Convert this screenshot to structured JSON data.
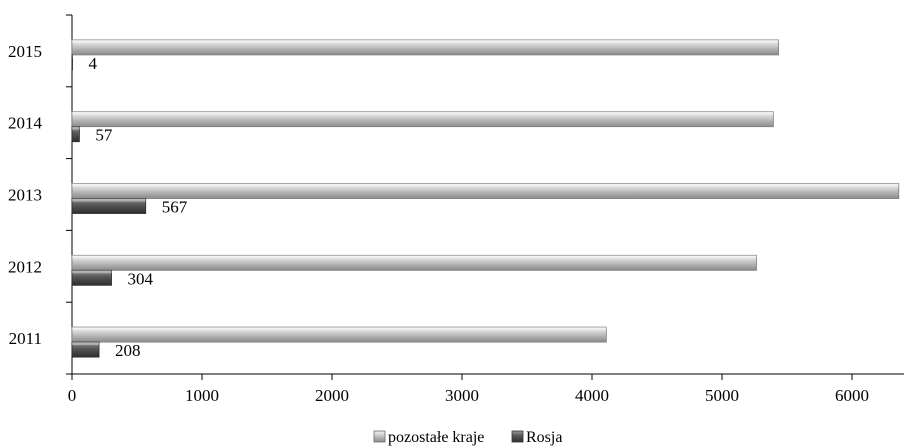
{
  "chart_data": {
    "type": "bar",
    "orientation": "horizontal",
    "categories": [
      "2011",
      "2012",
      "2013",
      "2014",
      "2015"
    ],
    "series": [
      {
        "name": "pozostałe kraje",
        "values": [
          4110,
          5265,
          6360,
          5395,
          5435
        ],
        "color": "#b5b5b5"
      },
      {
        "name": "Rosja",
        "values": [
          208,
          304,
          567,
          57,
          4
        ],
        "color": "#555555"
      }
    ],
    "data_labels": {
      "series": "Rosja",
      "values": [
        "208",
        "304",
        "567",
        "57",
        "4"
      ]
    },
    "x_ticks": [
      "0",
      "1000",
      "2000",
      "3000",
      "4000",
      "5000",
      "6000"
    ],
    "xlim": [
      0,
      6400
    ],
    "legend": {
      "position": "bottom",
      "labels": [
        "pozostałe kraje",
        "Rosja"
      ]
    },
    "grid": false
  }
}
